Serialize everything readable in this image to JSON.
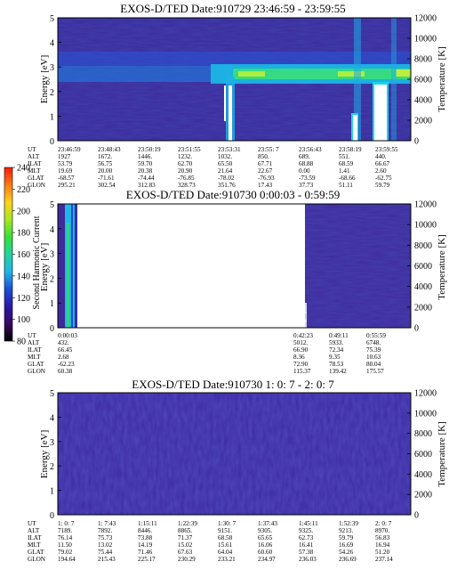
{
  "colors": {
    "background": "#3e2a9a",
    "panel_blank": "#ffffff",
    "colorbar_stops": [
      "#000000",
      "#3a0a5e",
      "#2a18a8",
      "#1c4fd8",
      "#20b7e6",
      "#22d3a0",
      "#36e03a",
      "#a8e81e",
      "#ffd21a",
      "#ff7a14",
      "#ff1a0a"
    ]
  },
  "colorbar": {
    "label": "Second Harmonic Current",
    "ticks": [
      "80",
      "100",
      "120",
      "140",
      "160",
      "180",
      "200",
      "220",
      "240"
    ]
  },
  "chart_data": [
    {
      "type": "heatmap",
      "title": "EXOS-D/TED   Date:910729  23:46:59 - 23:59:55",
      "ylabel": "Energy [eV]",
      "y2label": "Temperature [K]",
      "ylim": [
        0,
        5
      ],
      "y2lim": [
        0,
        12000
      ],
      "yticks": [
        "0",
        "1",
        "2",
        "3",
        "4",
        "5"
      ],
      "y2ticks": [
        "0",
        "2000",
        "4000",
        "6000",
        "8000",
        "10000",
        "12000"
      ],
      "row_labels": [
        "UT",
        "ALT",
        "ILAT",
        "MLT",
        "GLAT",
        "GLON"
      ],
      "columns": [
        [
          "23:46:59",
          "1927",
          "53.79",
          "19.69",
          "-68.57",
          "295.21"
        ],
        [
          "23:48:43",
          "1672.",
          "56.75",
          "20.00",
          "-71.61",
          "302.54"
        ],
        [
          "23:50:19",
          "1446.",
          "59.70",
          "20.38",
          "-74.44",
          "312.83"
        ],
        [
          "23:51:55",
          "1232.",
          "62.70",
          "20.90",
          "-76.85",
          "328.73"
        ],
        [
          "23:53:31",
          "1032.",
          "65.50",
          "21.64",
          "-78.02",
          "351.76"
        ],
        [
          "23:55: 7",
          "850.",
          "67.71",
          "22.67",
          "-76.93",
          "17.43"
        ],
        [
          "23:56:43",
          "689.",
          "68.88",
          "0.00",
          "-73.59",
          "37.73"
        ],
        [
          "23:58:19",
          "551.",
          "68.59",
          "1.41",
          "-68.66",
          "51.11"
        ],
        [
          "23:59:55",
          "440.",
          "66.67",
          "2.60",
          "-62.75",
          "59.79"
        ]
      ]
    },
    {
      "type": "heatmap",
      "title": "EXOS-D/TED   Date:910730  0:00:03 - 0:59:59",
      "ylabel": "Energy [eV]",
      "y2label": "Temperature [K]",
      "ylim": [
        0,
        5
      ],
      "y2lim": [
        0,
        12000
      ],
      "yticks": [
        "0",
        "1",
        "2",
        "3",
        "4",
        "5"
      ],
      "y2ticks": [
        "0",
        "2000",
        "4000",
        "6000",
        "8000",
        "10000",
        "12000"
      ],
      "row_labels": [
        "UT",
        "ALT",
        "ILAT",
        "MLT",
        "GLAT",
        "GLON"
      ],
      "left_column": [
        "0:00:03",
        "432.",
        "66.45",
        "2.68",
        "-62.23",
        "60.38"
      ],
      "right_columns": [
        [
          "0:42:23",
          "5012.",
          "66.90",
          "8.36",
          "72.90",
          "115.37"
        ],
        [
          "0:49:11",
          "5933.",
          "72.34",
          "9.35",
          "78.53",
          "139.42"
        ],
        [
          "0:55:59",
          "6748.",
          "75.39",
          "10.63",
          "80.04",
          "175.57"
        ]
      ]
    },
    {
      "type": "heatmap",
      "title": "EXOS-D/TED   Date:910730  1: 0: 7 - 2: 0: 7",
      "ylabel": "Energy [eV]",
      "y2label": "Temperature [K]",
      "ylim": [
        0,
        5
      ],
      "y2lim": [
        0,
        12000
      ],
      "yticks": [
        "0",
        "1",
        "2",
        "3",
        "4",
        "5"
      ],
      "y2ticks": [
        "0",
        "2000",
        "4000",
        "6000",
        "8000",
        "10000",
        "12000"
      ],
      "row_labels": [
        "UT",
        "ALT",
        "ILAT",
        "MLT",
        "GLAT",
        "GLON"
      ],
      "columns": [
        [
          "1: 0: 7",
          "7189.",
          "76.14",
          "11.50",
          "79.02",
          "194.64"
        ],
        [
          "1: 7:43",
          "7892.",
          "75.73",
          "13.02",
          "75.44",
          "215.43"
        ],
        [
          "1:15:11",
          "8446.",
          "73.88",
          "14.19",
          "71.46",
          "225.17"
        ],
        [
          "1:22:39",
          "8865.",
          "71.37",
          "15.02",
          "67.63",
          "230.29"
        ],
        [
          "1:30: 7",
          "9151.",
          "68.58",
          "15.61",
          "64.04",
          "233.21"
        ],
        [
          "1:37:43",
          "9305.",
          "65.65",
          "16.06",
          "60.60",
          "234.97"
        ],
        [
          "1:45:11",
          "9325.",
          "62.73",
          "16.41",
          "57.38",
          "236.03"
        ],
        [
          "1:52:39",
          "9213.",
          "59.79",
          "16.69",
          "54.26",
          "236.69"
        ],
        [
          "2: 0: 7",
          "8970.",
          "56.83",
          "16.94",
          "51.20",
          "237.14"
        ]
      ]
    }
  ]
}
